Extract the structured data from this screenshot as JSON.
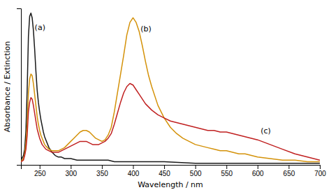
{
  "chart_data": {
    "type": "line",
    "xlabel": "Wavelength / nm",
    "ylabel": "Absorbance / Extinction",
    "xlim": [
      220,
      700
    ],
    "ylim": [
      0,
      1
    ],
    "xticks": [
      250,
      300,
      350,
      400,
      450,
      500,
      550,
      600,
      650,
      700
    ],
    "tick_labels": "x",
    "grid": false,
    "annotations": [
      {
        "text": "(a)",
        "x": 242,
        "y": 0.88
      },
      {
        "text": "(b)",
        "x": 412,
        "y": 0.87
      },
      {
        "text": "(c)",
        "x": 605,
        "y": 0.22
      }
    ],
    "series": [
      {
        "color": "#1a1a1a",
        "x": [
          220,
          224,
          226,
          228,
          230,
          232,
          234,
          236,
          238,
          240,
          242,
          244,
          246,
          248,
          250,
          252,
          254,
          256,
          258,
          260,
          265,
          270,
          275,
          280,
          285,
          290,
          295,
          300,
          310,
          320,
          330,
          340,
          350,
          360,
          370,
          380,
          390,
          400,
          420,
          450,
          500,
          550,
          600,
          650,
          700
        ],
        "values": [
          0.03,
          0.06,
          0.1,
          0.22,
          0.48,
          0.82,
          0.95,
          0.97,
          0.94,
          0.86,
          0.74,
          0.6,
          0.48,
          0.4,
          0.34,
          0.29,
          0.25,
          0.21,
          0.18,
          0.16,
          0.11,
          0.08,
          0.06,
          0.05,
          0.05,
          0.04,
          0.04,
          0.04,
          0.03,
          0.03,
          0.03,
          0.03,
          0.03,
          0.03,
          0.02,
          0.02,
          0.02,
          0.02,
          0.02,
          0.02,
          0.01,
          0.01,
          0.01,
          0.01,
          0.01
        ]
      },
      {
        "color": "#d4920a",
        "x": [
          220,
          224,
          226,
          228,
          230,
          232,
          234,
          236,
          238,
          240,
          242,
          244,
          246,
          248,
          250,
          252,
          254,
          256,
          258,
          260,
          265,
          270,
          275,
          280,
          285,
          290,
          295,
          300,
          305,
          310,
          315,
          320,
          325,
          330,
          335,
          340,
          345,
          350,
          355,
          360,
          365,
          370,
          375,
          380,
          385,
          390,
          395,
          400,
          405,
          410,
          415,
          420,
          425,
          430,
          440,
          450,
          460,
          470,
          480,
          490,
          500,
          510,
          520,
          530,
          540,
          550,
          560,
          570,
          580,
          590,
          600,
          620,
          640,
          660,
          680,
          700
        ],
        "values": [
          0.02,
          0.04,
          0.07,
          0.14,
          0.26,
          0.46,
          0.55,
          0.58,
          0.57,
          0.52,
          0.45,
          0.38,
          0.31,
          0.26,
          0.22,
          0.19,
          0.17,
          0.15,
          0.13,
          0.12,
          0.1,
          0.09,
          0.09,
          0.09,
          0.1,
          0.11,
          0.13,
          0.15,
          0.17,
          0.19,
          0.21,
          0.22,
          0.22,
          0.21,
          0.19,
          0.17,
          0.16,
          0.15,
          0.16,
          0.19,
          0.24,
          0.34,
          0.46,
          0.58,
          0.7,
          0.83,
          0.91,
          0.94,
          0.91,
          0.85,
          0.76,
          0.66,
          0.57,
          0.5,
          0.38,
          0.3,
          0.24,
          0.2,
          0.17,
          0.15,
          0.13,
          0.12,
          0.11,
          0.1,
          0.09,
          0.09,
          0.08,
          0.07,
          0.07,
          0.06,
          0.05,
          0.04,
          0.03,
          0.03,
          0.02,
          0.02
        ]
      },
      {
        "color": "#c02020",
        "x": [
          220,
          224,
          226,
          228,
          230,
          232,
          234,
          236,
          238,
          240,
          242,
          244,
          246,
          248,
          250,
          252,
          254,
          256,
          258,
          260,
          265,
          270,
          275,
          280,
          285,
          290,
          295,
          300,
          305,
          310,
          315,
          320,
          325,
          330,
          335,
          340,
          345,
          350,
          355,
          360,
          365,
          370,
          375,
          380,
          385,
          390,
          395,
          400,
          405,
          410,
          415,
          420,
          425,
          430,
          440,
          450,
          460,
          470,
          480,
          490,
          500,
          510,
          520,
          530,
          540,
          550,
          560,
          570,
          580,
          590,
          600,
          620,
          640,
          660,
          680,
          700
        ],
        "values": [
          0.02,
          0.03,
          0.06,
          0.1,
          0.19,
          0.34,
          0.4,
          0.43,
          0.42,
          0.38,
          0.33,
          0.28,
          0.23,
          0.2,
          0.17,
          0.15,
          0.13,
          0.12,
          0.11,
          0.1,
          0.09,
          0.08,
          0.08,
          0.08,
          0.09,
          0.1,
          0.11,
          0.12,
          0.13,
          0.14,
          0.15,
          0.15,
          0.15,
          0.14,
          0.13,
          0.13,
          0.13,
          0.14,
          0.15,
          0.17,
          0.2,
          0.26,
          0.33,
          0.4,
          0.46,
          0.5,
          0.52,
          0.51,
          0.48,
          0.45,
          0.42,
          0.39,
          0.37,
          0.35,
          0.32,
          0.3,
          0.28,
          0.27,
          0.26,
          0.25,
          0.24,
          0.23,
          0.22,
          0.22,
          0.21,
          0.21,
          0.2,
          0.19,
          0.18,
          0.17,
          0.16,
          0.13,
          0.1,
          0.07,
          0.05,
          0.03
        ]
      }
    ]
  }
}
